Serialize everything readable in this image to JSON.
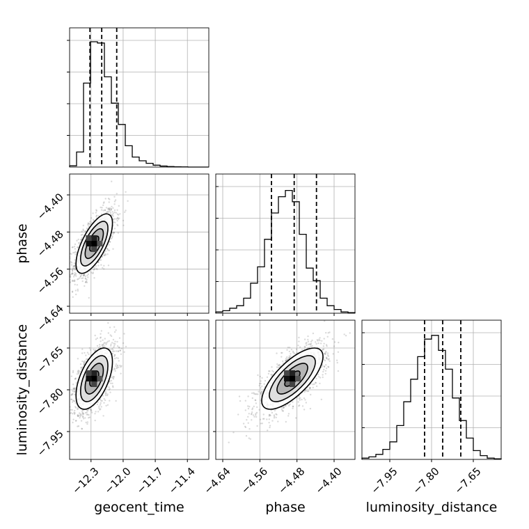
{
  "chart_data": {
    "type": "corner",
    "parameters": [
      {
        "name": "geocent_time",
        "range": [
          -12.5,
          -11.2
        ],
        "ticks": [
          -12.3,
          -12.0,
          -11.7,
          -11.4
        ],
        "tick_labels": [
          "−12.3",
          "−12.0",
          "−11.7",
          "−11.4"
        ]
      },
      {
        "name": "phase",
        "range": [
          -4.655,
          -4.355
        ],
        "ticks": [
          -4.64,
          -4.56,
          -4.48,
          -4.4
        ],
        "tick_labels": [
          "−4.64",
          "−4.56",
          "−4.48",
          "−4.40"
        ]
      },
      {
        "name": "luminosity_distance",
        "range": [
          -8.05,
          -7.55
        ],
        "ticks": [
          -7.95,
          -7.8,
          -7.65
        ],
        "tick_labels": [
          "−7.95",
          "−7.80",
          "−7.65"
        ]
      }
    ],
    "histograms": [
      {
        "parameter": "geocent_time",
        "quantiles": [
          -12.31,
          -12.2,
          -12.06
        ],
        "counts": [
          0.01,
          0.12,
          0.67,
          1.0,
          0.99,
          0.72,
          0.51,
          0.34,
          0.17,
          0.08,
          0.05,
          0.03,
          0.015,
          0.008,
          0.004,
          0.002,
          0.001,
          0.0,
          0.0,
          0.0
        ]
      },
      {
        "parameter": "phase",
        "quantiles": [
          -4.535,
          -4.486,
          -4.438
        ],
        "counts": [
          0.01,
          0.02,
          0.04,
          0.06,
          0.12,
          0.24,
          0.37,
          0.59,
          0.8,
          0.93,
          0.98,
          0.89,
          0.63,
          0.36,
          0.26,
          0.12,
          0.06,
          0.03,
          0.01,
          0.005
        ]
      },
      {
        "parameter": "luminosity_distance",
        "quantiles": [
          -7.825,
          -7.76,
          -7.695
        ],
        "counts": [
          0.01,
          0.02,
          0.04,
          0.08,
          0.14,
          0.27,
          0.46,
          0.64,
          0.82,
          0.96,
          0.99,
          0.87,
          0.72,
          0.49,
          0.31,
          0.17,
          0.07,
          0.03,
          0.01,
          0.005
        ]
      }
    ],
    "pair_densities": [
      {
        "x": "geocent_time",
        "y": "phase",
        "center": [
          -12.27,
          -4.505
        ],
        "sd": [
          0.085,
          0.032
        ],
        "correlation": 0.68
      },
      {
        "x": "geocent_time",
        "y": "luminosity_distance",
        "center": [
          -12.27,
          -7.76
        ],
        "sd": [
          0.085,
          0.055
        ],
        "correlation": 0.55
      },
      {
        "x": "phase",
        "y": "luminosity_distance",
        "center": [
          -4.49,
          -7.76
        ],
        "sd": [
          0.033,
          0.055
        ],
        "correlation": 0.72
      }
    ],
    "contour_levels_sigma": [
      0.5,
      1.0,
      1.5,
      2.0
    ],
    "grid": true
  }
}
